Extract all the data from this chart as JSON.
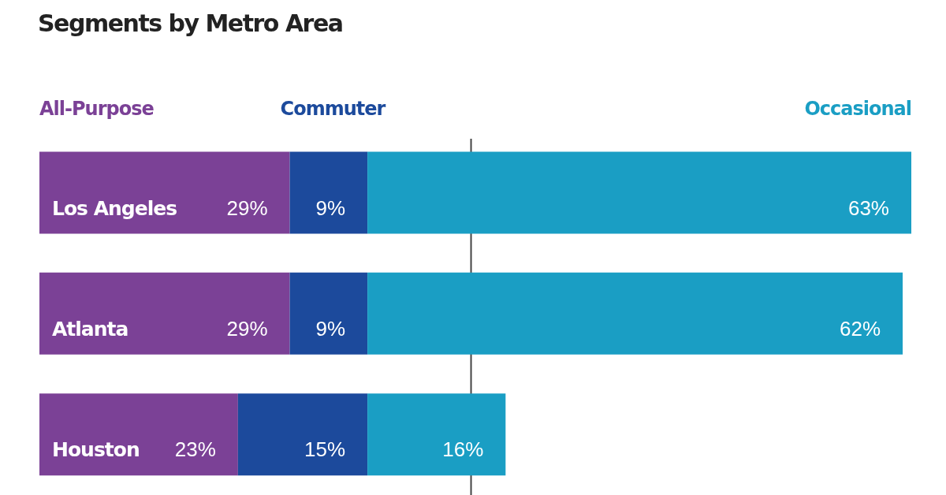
{
  "chart_data": {
    "type": "bar",
    "title": "Segments by Metro Area",
    "orientation": "horizontal",
    "stacked": true,
    "legend": "top",
    "categories": [
      "Los Angeles",
      "Atlanta",
      "Houston"
    ],
    "series": [
      {
        "name": "All-Purpose",
        "color": "#7b4196",
        "values": [
          29,
          29,
          23
        ],
        "value_labels": [
          "29%",
          "29%",
          "23%"
        ]
      },
      {
        "name": "Commuter",
        "color": "#1c4a9c",
        "values": [
          9,
          9,
          15
        ],
        "value_labels": [
          "9%",
          "9%",
          "15%"
        ]
      },
      {
        "name": "Occasional",
        "color": "#1a9ec4",
        "values": [
          63,
          62,
          16
        ],
        "value_labels": [
          "63%",
          "62%",
          "16%"
        ]
      }
    ],
    "ref_lines": [
      {
        "axis": "x",
        "value": 50,
        "color": "#444444"
      }
    ]
  }
}
